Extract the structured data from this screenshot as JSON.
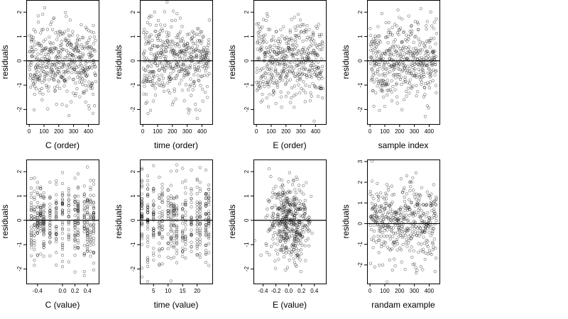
{
  "figure": {
    "background": "#ffffff",
    "point_color": "#000000",
    "zero_line_color": "#000000"
  },
  "chart_data": [
    {
      "id": "C_order",
      "type": "scatter",
      "title": "",
      "xlabel": "C (order)",
      "ylabel": "residuals",
      "xlim": [
        -20,
        470
      ],
      "ylim": [
        -2.6,
        2.5
      ],
      "xticks": [
        0,
        100,
        200,
        300,
        400
      ],
      "xtick_labels": [
        "0",
        "100",
        "200",
        "300",
        "400"
      ],
      "yticks": [
        -2,
        -1,
        0,
        1,
        2
      ],
      "ytick_labels": [
        "-2",
        "-1",
        "0",
        "1",
        "2"
      ],
      "hline": 0,
      "grid": false,
      "legend": "none",
      "gen": {
        "n": 450,
        "xmin": 1,
        "xmax": 450,
        "mode": "index",
        "sd": 0.8,
        "seed": 11
      }
    },
    {
      "id": "time_order",
      "type": "scatter",
      "title": "",
      "xlabel": "time (order)",
      "ylabel": "residuals",
      "xlim": [
        -20,
        470
      ],
      "ylim": [
        -2.6,
        2.5
      ],
      "xticks": [
        0,
        100,
        200,
        300,
        400
      ],
      "xtick_labels": [
        "0",
        "100",
        "200",
        "300",
        "400"
      ],
      "yticks": [
        -2,
        -1,
        0,
        1,
        2
      ],
      "ytick_labels": [
        "-2",
        "-1",
        "0",
        "1",
        "2"
      ],
      "hline": 0,
      "grid": false,
      "legend": "none",
      "gen": {
        "n": 450,
        "xmin": 1,
        "xmax": 450,
        "mode": "index",
        "sd": 0.8,
        "seed": 23
      }
    },
    {
      "id": "E_order",
      "type": "scatter",
      "title": "",
      "xlabel": "E (order)",
      "ylabel": "residuals",
      "xlim": [
        -20,
        470
      ],
      "ylim": [
        -2.6,
        2.5
      ],
      "xticks": [
        0,
        100,
        200,
        300,
        400
      ],
      "xtick_labels": [
        "0",
        "100",
        "200",
        "300",
        "400"
      ],
      "yticks": [
        -2,
        -1,
        0,
        1,
        2
      ],
      "ytick_labels": [
        "-2",
        "-1",
        "0",
        "1",
        "2"
      ],
      "hline": 0,
      "grid": false,
      "legend": "none",
      "gen": {
        "n": 450,
        "xmin": 1,
        "xmax": 450,
        "mode": "index",
        "sd": 0.8,
        "seed": 37
      }
    },
    {
      "id": "sample_index",
      "type": "scatter",
      "title": "",
      "xlabel": "sample index",
      "ylabel": "residuals",
      "xlim": [
        -20,
        470
      ],
      "ylim": [
        -2.6,
        2.5
      ],
      "xticks": [
        0,
        100,
        200,
        300,
        400
      ],
      "xtick_labels": [
        "0",
        "100",
        "200",
        "300",
        "400"
      ],
      "yticks": [
        -2,
        -1,
        0,
        1,
        2
      ],
      "ytick_labels": [
        "-2",
        "-1",
        "0",
        "1",
        "2"
      ],
      "hline": 0,
      "grid": false,
      "legend": "none",
      "gen": {
        "n": 450,
        "xmin": 1,
        "xmax": 450,
        "mode": "index",
        "sd": 0.8,
        "seed": 41
      }
    },
    {
      "id": "C_value",
      "type": "scatter",
      "title": "",
      "xlabel": "C (value)",
      "ylabel": "residuals",
      "xlim": [
        -0.58,
        0.58
      ],
      "ylim": [
        -2.6,
        2.5
      ],
      "xticks": [
        -0.4,
        0.0,
        0.2,
        0.4
      ],
      "xtick_labels": [
        "-0.4",
        "0.0",
        "0.2",
        "0.4"
      ],
      "yticks": [
        -2,
        -1,
        0,
        1,
        2
      ],
      "ytick_labels": [
        "-2",
        "-1",
        "0",
        "1",
        "2"
      ],
      "hline": 0,
      "grid": false,
      "legend": "none",
      "gen": {
        "n": 450,
        "mode": "discrete",
        "levels": [
          -0.5,
          -0.45,
          -0.4,
          -0.35,
          -0.3,
          -0.2,
          -0.1,
          0.0,
          0.1,
          0.2,
          0.25,
          0.35,
          0.4,
          0.45,
          0.5
        ],
        "sd": 0.8,
        "seed": 53
      }
    },
    {
      "id": "time_value",
      "type": "scatter",
      "title": "",
      "xlabel": "time (value)",
      "ylabel": "residuals",
      "xlim": [
        0.3,
        25.2
      ],
      "ylim": [
        -2.6,
        2.5
      ],
      "xticks": [
        5,
        10,
        15,
        20
      ],
      "xtick_labels": [
        "5",
        "10",
        "15",
        "20"
      ],
      "yticks": [
        -2,
        -1,
        0,
        1,
        2
      ],
      "ytick_labels": [
        "-2",
        "-1",
        "0",
        "1",
        "2"
      ],
      "hline": 0,
      "grid": false,
      "legend": "none",
      "gen": {
        "n": 450,
        "mode": "discrete",
        "levels": [
          1,
          3,
          5,
          7,
          8,
          10,
          11,
          12,
          13,
          15,
          16,
          18,
          20,
          21,
          23,
          24
        ],
        "sd": 0.8,
        "seed": 67
      }
    },
    {
      "id": "E_value",
      "type": "scatter",
      "title": "",
      "xlabel": "E (value)",
      "ylabel": "residuals",
      "xlim": [
        -0.55,
        0.58
      ],
      "ylim": [
        -2.6,
        2.5
      ],
      "xticks": [
        -0.4,
        -0.2,
        0.0,
        0.2,
        0.4
      ],
      "xtick_labels": [
        "-0.4",
        "-0.2",
        "0.0",
        "0.2",
        "0.4"
      ],
      "yticks": [
        -2,
        -1,
        0,
        1,
        2
      ],
      "ytick_labels": [
        "-2",
        "-1",
        "0",
        "1",
        "2"
      ],
      "hline": 0,
      "grid": false,
      "legend": "none",
      "gen": {
        "n": 450,
        "mode": "normal",
        "xcenter": 0.0,
        "xsd": 0.17,
        "sd": 0.8,
        "seed": 79
      }
    },
    {
      "id": "random_example",
      "type": "scatter",
      "title": "",
      "xlabel": "randam example",
      "ylabel": "residuals",
      "xlim": [
        -20,
        470
      ],
      "ylim": [
        -2.9,
        3.1
      ],
      "xticks": [
        0,
        100,
        200,
        300,
        400
      ],
      "xtick_labels": [
        "0",
        "100",
        "200",
        "300",
        "400"
      ],
      "yticks": [
        -2,
        -1,
        0,
        1,
        2,
        3
      ],
      "ytick_labels": [
        "-2",
        "-1",
        "0",
        "1",
        "2",
        "3"
      ],
      "hline": 0,
      "grid": false,
      "legend": "none",
      "gen": {
        "n": 450,
        "xmin": 1,
        "xmax": 450,
        "mode": "index",
        "sd": 1.0,
        "seed": 97
      }
    }
  ]
}
